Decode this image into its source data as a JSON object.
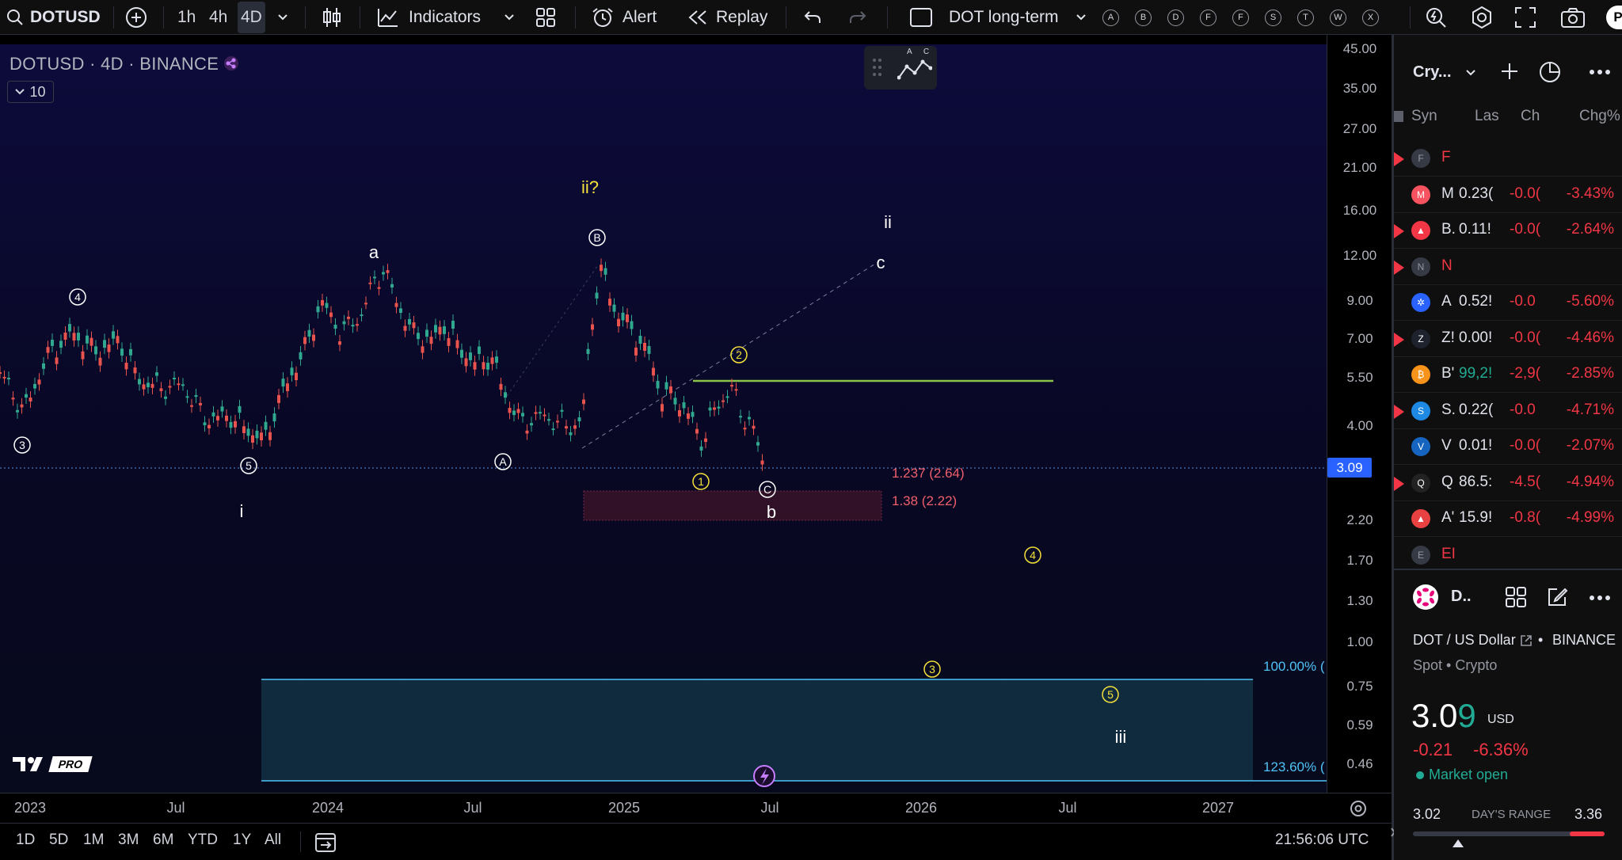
{
  "topbar": {
    "symbol": "DOTUSD",
    "timeframes": [
      "1h",
      "4h",
      "4D"
    ],
    "active_timeframe": "4D",
    "indicators_label": "Indicators",
    "alert_label": "Alert",
    "replay_label": "Replay",
    "layout_name": "DOT long-term",
    "circle_buttons": [
      "A",
      "B",
      "D",
      "F",
      "F",
      "S",
      "T",
      "W",
      "X"
    ],
    "publish_label": "P"
  },
  "chart": {
    "title": "DOTUSD · 4D · BINANCE",
    "volume_value": "10",
    "draw_tool_letters": "A C",
    "wave_labels": [
      {
        "text": "ii?",
        "color": "#f5e13c"
      },
      {
        "text": "ii",
        "color": "#ffffff"
      },
      {
        "text": "a",
        "color": "#ffffff"
      },
      {
        "text": "c",
        "color": "#ffffff"
      },
      {
        "text": "b",
        "color": "#ffffff"
      },
      {
        "text": "i",
        "color": "#ffffff"
      },
      {
        "text": "iii",
        "color": "#ffffff"
      }
    ],
    "circled_labels": [
      {
        "text": "4",
        "color": "#ffffff"
      },
      {
        "text": "3",
        "color": "#ffffff"
      },
      {
        "text": "5",
        "color": "#ffffff"
      },
      {
        "text": "A",
        "color": "#ffffff"
      },
      {
        "text": "B",
        "color": "#ffffff"
      },
      {
        "text": "C",
        "color": "#ffffff"
      },
      {
        "text": "1",
        "color": "#f5e13c"
      },
      {
        "text": "2",
        "color": "#f5e13c"
      },
      {
        "text": "4",
        "color": "#f5e13c"
      },
      {
        "text": "3",
        "color": "#f5e13c"
      },
      {
        "text": "5",
        "color": "#f5e13c"
      }
    ],
    "fib_labels": [
      "1.237 (2.64)",
      "1.38 (2.22)"
    ],
    "fib_box_labels": [
      "100.00% (",
      "123.60% ("
    ],
    "logo_text": "PRO"
  },
  "price_scale": {
    "ticks": [
      "45.00",
      "35.00",
      "27.00",
      "21.00",
      "16.00",
      "12.00",
      "9.00",
      "7.00",
      "5.50",
      "4.00",
      "2.20",
      "1.70",
      "1.30",
      "1.00",
      "0.75",
      "0.59",
      "0.46"
    ],
    "current_price": "3.09"
  },
  "time_axis": {
    "ticks": [
      "2023",
      "Jul",
      "2024",
      "Jul",
      "2025",
      "Jul",
      "2026",
      "Jul",
      "2027"
    ]
  },
  "bottom_bar": {
    "ranges": [
      "1D",
      "5D",
      "1M",
      "3M",
      "6M",
      "YTD",
      "1Y",
      "All"
    ],
    "clock": "21:56:06 UTC"
  },
  "watchlist": {
    "title": "Cry...",
    "columns": [
      "Syn",
      "Las",
      "Ch",
      "Chg%"
    ],
    "rows": [
      {
        "section": true,
        "icon": "F",
        "symbol": "F",
        "flag": true
      },
      {
        "icon": "M",
        "icon_color": "#f7525f",
        "symbol": "M",
        "last": "0.23(",
        "chg": "-0.0(",
        "chgp": "-3.43%",
        "flag": false
      },
      {
        "icon": "▲",
        "icon_color": "#f23645",
        "symbol": "B.",
        "last": "0.11!",
        "chg": "-0.0(",
        "chgp": "-2.64%",
        "flag": true
      },
      {
        "section": true,
        "icon": "N",
        "symbol": "N",
        "flag": true
      },
      {
        "icon": "✲",
        "icon_color": "#2962ff",
        "symbol": "A",
        "last": "0.52!",
        "chg": "-0.0",
        "chgp": "-5.60%",
        "flag": false
      },
      {
        "icon": "Z",
        "icon_color": "#1e222d",
        "symbol": "Z!",
        "last": "0.00!",
        "chg": "-0.0(",
        "chgp": "-4.46%",
        "flag": true
      },
      {
        "icon": "₿",
        "icon_color": "#f7931a",
        "symbol": "B'",
        "last": "99,2!",
        "chg": "-2,9(",
        "chgp": "-2.85%",
        "flag": false,
        "last_pos": true
      },
      {
        "icon": "S",
        "icon_color": "#1e88e5",
        "symbol": "S.",
        "last": "0.22(",
        "chg": "-0.0",
        "chgp": "-4.71%",
        "flag": true
      },
      {
        "icon": "V",
        "icon_color": "#1565c0",
        "symbol": "V",
        "last": "0.01!",
        "chg": "-0.0(",
        "chgp": "-2.07%",
        "flag": false
      },
      {
        "icon": "Q",
        "icon_color": "#222",
        "symbol": "Q",
        "last": "86.5:",
        "chg": "-4.5(",
        "chgp": "-4.94%",
        "flag": true
      },
      {
        "icon": "▲",
        "icon_color": "#e84142",
        "symbol": "A'",
        "last": "15.9!",
        "chg": "-0.8(",
        "chgp": "-4.99%",
        "flag": false
      },
      {
        "section": true,
        "icon": "E",
        "symbol": "EI",
        "flag": false
      }
    ]
  },
  "details": {
    "symbol_short": "D..",
    "name": "DOT / US Dollar",
    "exchange": "BINANCE",
    "type": "Spot • Crypto",
    "price_main": "3.0",
    "price_last": "9",
    "currency": "USD",
    "change": "-0.21",
    "change_pct": "-6.36%",
    "market_status": "Market open",
    "day_low": "3.02",
    "range_label": "DAY'S RANGE",
    "day_high": "3.36",
    "range_fill": 0.18
  },
  "colors": {
    "accent": "#2962ff",
    "negative": "#f23645",
    "positive": "#22ab94",
    "wave_yellow": "#f5e13c",
    "resistance_green": "#8bc34a",
    "fib_teal": "#4fc3f7"
  }
}
